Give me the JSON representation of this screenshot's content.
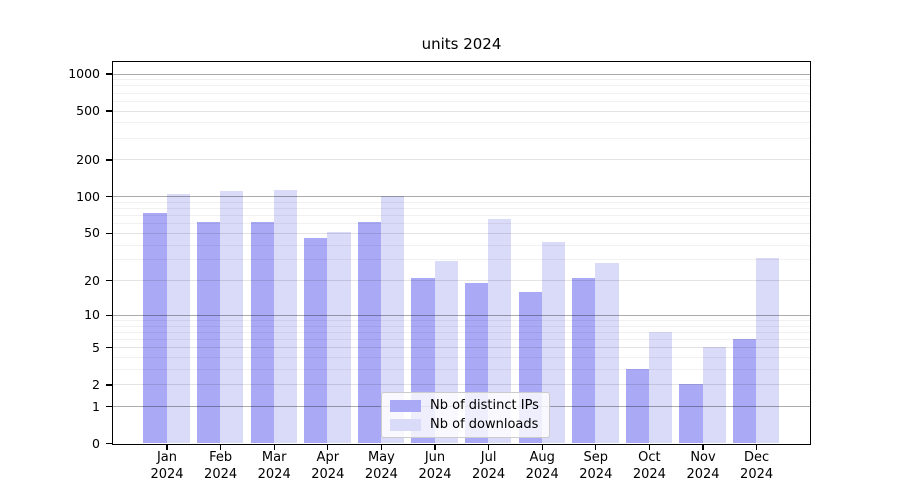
{
  "chart_data": {
    "type": "bar",
    "title": "units 2024",
    "categories": [
      "Jan\n2024",
      "Feb\n2024",
      "Mar\n2024",
      "Apr\n2024",
      "May\n2024",
      "Jun\n2024",
      "Jul\n2024",
      "Aug\n2024",
      "Sep\n2024",
      "Oct\n2024",
      "Nov\n2024",
      "Dec\n2024"
    ],
    "series": [
      {
        "name": "Nb of distinct IPs",
        "color": "#a9a9f5",
        "values": [
          73,
          62,
          62,
          45,
          62,
          21,
          19,
          16,
          21,
          3,
          2,
          6
        ]
      },
      {
        "name": "Nb of downloads",
        "color": "#dadaf9",
        "values": [
          104,
          110,
          112,
          51,
          100,
          29,
          65,
          42,
          28,
          7,
          5,
          31
        ]
      }
    ],
    "xlabel": "",
    "ylabel": "",
    "y_axis": {
      "scale": "log10(value+1)",
      "ticks": [
        0,
        1,
        2,
        5,
        10,
        20,
        50,
        100,
        200,
        500,
        1000
      ],
      "ylim": [
        0,
        1300
      ]
    },
    "legend": {
      "position": "inside lower center"
    },
    "grid": "horizontal major + minor"
  }
}
